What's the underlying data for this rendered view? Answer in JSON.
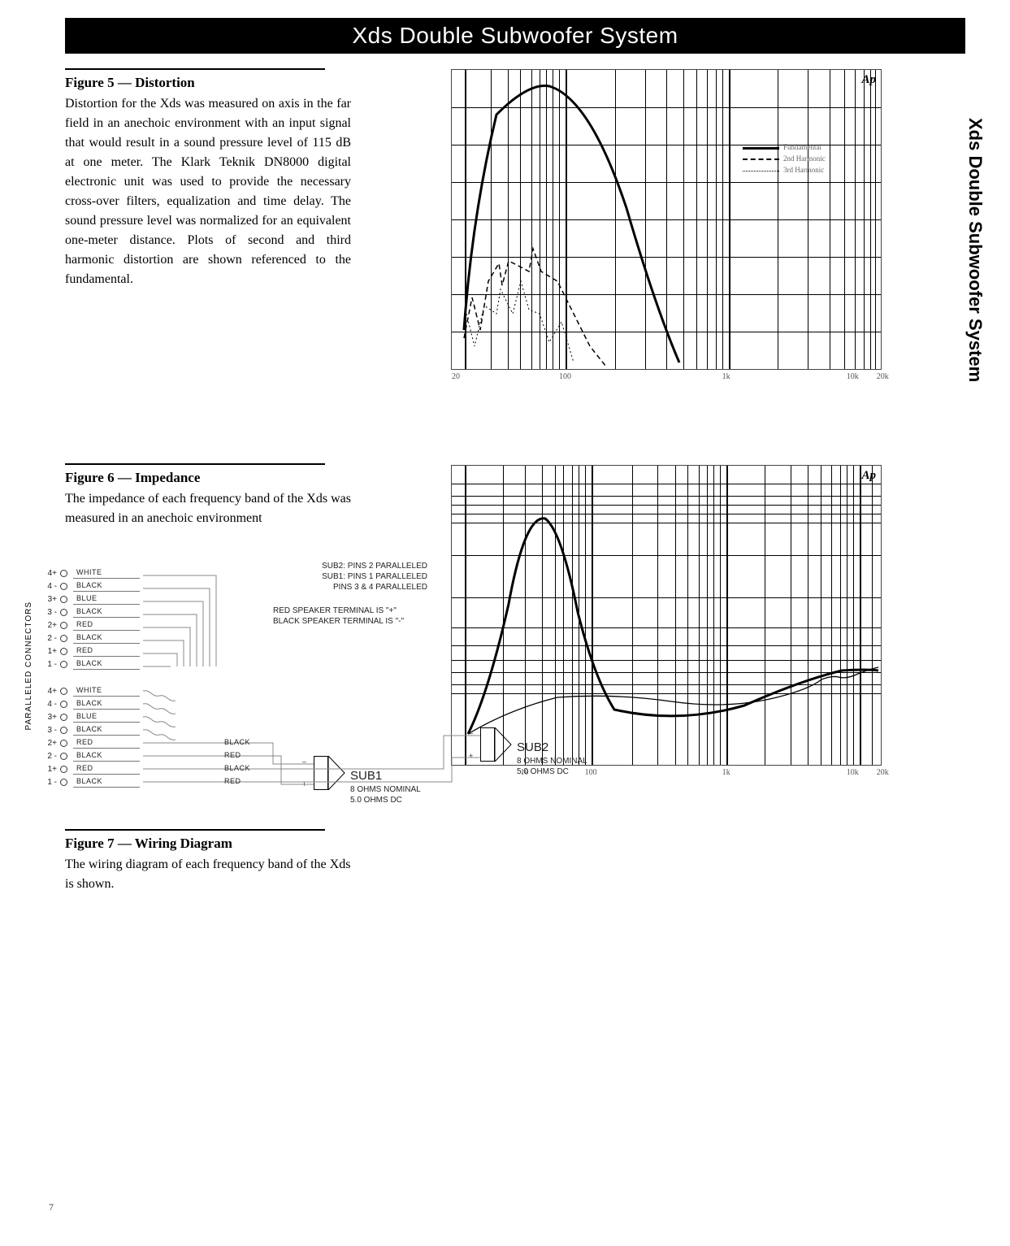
{
  "header": {
    "title": "Xds Double Subwoofer System"
  },
  "side_label": "Xds Double Subwoofer System",
  "page_number": "7",
  "figures": {
    "fig5": {
      "title": "Figure 5 — Distortion",
      "body": "Distortion for the Xds was measured on axis in the far field in an anechoic environment with an input signal that would result in a sound pressure level of 115 dB at one meter. The Klark Teknik DN8000 digital electronic unit was used to provide the necessary cross-over filters, equalization and time delay. The sound pressure level was normalized for an equivalent one-meter distance. Plots of second and third harmonic distortion are shown referenced to the fundamental."
    },
    "fig6": {
      "title": "Figure 6 — Impedance",
      "body": "The impedance of each frequency band of the Xds was measured in an anechoic environment"
    },
    "fig7": {
      "title": "Figure 7 — Wiring Diagram",
      "body": "The wiring diagram of each frequency band of the Xds is shown."
    }
  },
  "chart5": {
    "type": "line",
    "logo": "Ap",
    "x_ticks": [
      "20",
      "100",
      "1k",
      "10k",
      "20k"
    ],
    "legend_items": [
      {
        "style": "thick",
        "label": "Fundamental"
      },
      {
        "style": "dash1",
        "label": "2nd Harmonic"
      },
      {
        "style": "dot1",
        "label": "3rd Harmonic"
      }
    ],
    "xscale": "log",
    "background_color": "#ffffff",
    "grid_color": "#000000"
  },
  "chart6": {
    "type": "line",
    "logo": "Ap",
    "x_ticks": [
      "10",
      "100",
      "1k",
      "10k",
      "20k"
    ],
    "xscale": "log",
    "background_color": "#ffffff",
    "grid_color": "#000000"
  },
  "wiring": {
    "side_label": "PARALLELED CONNECTORS",
    "pin_rows": [
      {
        "pin": "4+",
        "color": "WHITE"
      },
      {
        "pin": "4 -",
        "color": "BLACK"
      },
      {
        "pin": "3+",
        "color": "BLUE"
      },
      {
        "pin": "3 -",
        "color": "BLACK"
      },
      {
        "pin": "2+",
        "color": "RED"
      },
      {
        "pin": "2 -",
        "color": "BLACK"
      },
      {
        "pin": "1+",
        "color": "RED"
      },
      {
        "pin": "1 -",
        "color": "BLACK"
      }
    ],
    "pin_rows_2": [
      {
        "pin": "4+",
        "color": "WHITE"
      },
      {
        "pin": "4 -",
        "color": "BLACK"
      },
      {
        "pin": "3+",
        "color": "BLUE"
      },
      {
        "pin": "3 -",
        "color": "BLACK"
      },
      {
        "pin": "2+",
        "color": "RED",
        "right": "BLACK"
      },
      {
        "pin": "2 -",
        "color": "BLACK",
        "right": "RED"
      },
      {
        "pin": "1+",
        "color": "RED",
        "right": "BLACK"
      },
      {
        "pin": "1 -",
        "color": "BLACK",
        "right": "RED"
      }
    ],
    "notes": {
      "l1": "SUB2: PINS 2 PARALLELED",
      "l2": "SUB1: PINS 1 PARALLELED",
      "l3": "PINS 3 & 4 PARALLELED",
      "t1": "RED SPEAKER TERMINAL IS \"+\"",
      "t2": "BLACK SPEAKER TERMINAL IS \"-\""
    },
    "sub1": {
      "name": "SUB1",
      "spec1": "8 OHMS NOMINAL",
      "spec2": "5.0 OHMS DC"
    },
    "sub2": {
      "name": "SUB2",
      "spec1": "8 OHMS NOMINAL",
      "spec2": "5.0 OHMS DC"
    },
    "plus": "+",
    "minus": "–"
  }
}
